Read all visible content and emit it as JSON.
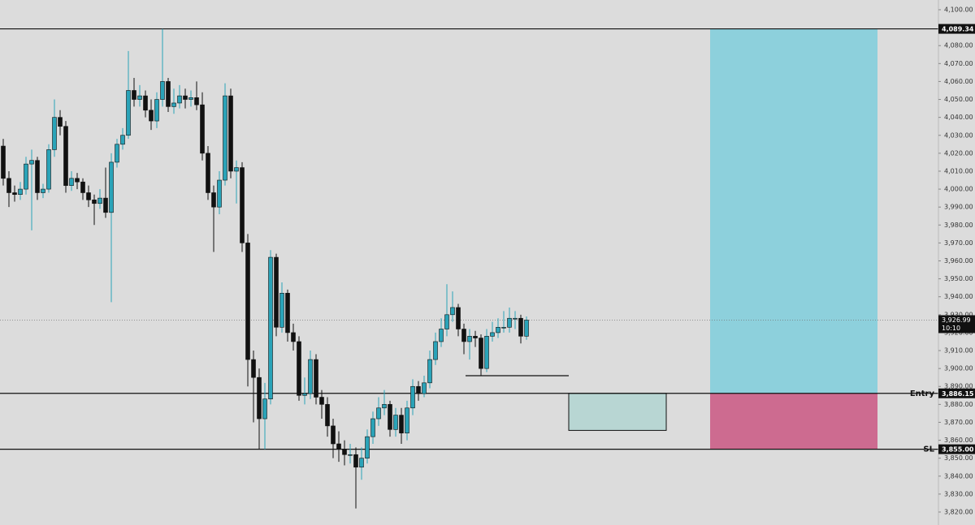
{
  "chart_data": {
    "type": "candlestick",
    "ylim": [
      3812.76,
      4105.43
    ],
    "yticks": [
      {
        "value": 3820,
        "label": "3,820.00"
      },
      {
        "value": 3830,
        "label": "3,830.00"
      },
      {
        "value": 3840,
        "label": "3,840.00"
      },
      {
        "value": 3850,
        "label": "3,850.00"
      },
      {
        "value": 3860,
        "label": "3,860.00"
      },
      {
        "value": 3870,
        "label": "3,870.00"
      },
      {
        "value": 3880,
        "label": "3,880.00"
      },
      {
        "value": 3890,
        "label": "3,890.00"
      },
      {
        "value": 3900,
        "label": "3,900.00"
      },
      {
        "value": 3910,
        "label": "3,910.00"
      },
      {
        "value": 3920,
        "label": "3,920.00"
      },
      {
        "value": 3930,
        "label": "3,930.00"
      },
      {
        "value": 3940,
        "label": "3,940.00"
      },
      {
        "value": 3950,
        "label": "3,950.00"
      },
      {
        "value": 3960,
        "label": "3,960.00"
      },
      {
        "value": 3970,
        "label": "3,970.00"
      },
      {
        "value": 3980,
        "label": "3,980.00"
      },
      {
        "value": 3990,
        "label": "3,990.00"
      },
      {
        "value": 4000,
        "label": "4,000.00"
      },
      {
        "value": 4010,
        "label": "4,010.00"
      },
      {
        "value": 4020,
        "label": "4,020.00"
      },
      {
        "value": 4030,
        "label": "4,030.00"
      },
      {
        "value": 4040,
        "label": "4,040.00"
      },
      {
        "value": 4050,
        "label": "4,050.00"
      },
      {
        "value": 4060,
        "label": "4,060.00"
      },
      {
        "value": 4070,
        "label": "4,070.00"
      },
      {
        "value": 4080,
        "label": "4,080.00"
      },
      {
        "value": 4090,
        "label": "4,090.00"
      },
      {
        "value": 4100,
        "label": "4,100.00"
      }
    ],
    "up_color": "#2aa3b8",
    "down_color": "#111111",
    "open": [
      4024,
      4006,
      3998,
      3997,
      4000,
      4014,
      4016,
      3998,
      4000,
      4022,
      4040,
      4035,
      4002,
      4006,
      4004,
      3998,
      3994,
      3992,
      3995,
      3987,
      4015,
      4025,
      4030,
      4055,
      4050,
      4052,
      4044,
      4038,
      4050,
      4060,
      4046,
      4048,
      4052,
      4050,
      4051,
      4047,
      4020,
      3998,
      3990,
      4005,
      4052,
      4010,
      4012,
      3970,
      3905,
      3895,
      3872,
      3883,
      3962,
      3923,
      3942,
      3920,
      3915,
      3885,
      3886,
      3905,
      3884,
      3880,
      3868,
      3858,
      3855,
      3852,
      3852,
      3845,
      3850,
      3862,
      3872,
      3878,
      3880,
      3866,
      3874,
      3864,
      3878,
      3890,
      3886,
      3892,
      3905,
      3915,
      3922,
      3930,
      3934,
      3922,
      3915,
      3918,
      3917,
      3900,
      3918,
      3920,
      3923,
      3923,
      3928,
      3928,
      3918
    ],
    "high": [
      4028,
      4010,
      4002,
      4004,
      4018,
      4022,
      4018,
      4003,
      4025,
      4050,
      4044,
      4038,
      4010,
      4009,
      4006,
      4002,
      3997,
      4000,
      4012,
      4020,
      4028,
      4034,
      4077,
      4062,
      4058,
      4055,
      4050,
      4054,
      4089.34,
      4062,
      4056,
      4058,
      4056,
      4055,
      4060,
      4054,
      4024,
      4002,
      4010,
      4059,
      4056,
      4016,
      4015,
      3975,
      3910,
      3900,
      3892,
      3966,
      3964,
      3948,
      3944,
      3925,
      3918,
      3895,
      3910,
      3908,
      3888,
      3884,
      3872,
      3865,
      3860,
      3858,
      3856,
      3856,
      3866,
      3876,
      3884,
      3888,
      3882,
      3878,
      3878,
      3882,
      3894,
      3893,
      3896,
      3910,
      3920,
      3928,
      3947,
      3943,
      3936,
      3925,
      3922,
      3921,
      3919,
      3922,
      3926,
      3928,
      3932,
      3934,
      3932,
      3930,
      3929
    ],
    "low": [
      4002,
      3990,
      3993,
      3994,
      3997,
      3977,
      3994,
      3995,
      3998,
      4018,
      4030,
      3998,
      3999,
      4000,
      3994,
      3990,
      3980,
      3989,
      3984,
      3937,
      4012,
      4022,
      4028,
      4046,
      4046,
      4040,
      4033,
      4034,
      4046,
      4043,
      4042,
      4045,
      4045,
      4046,
      4044,
      4016,
      3994,
      3965,
      3986,
      4002,
      4006,
      3992,
      3965,
      3890,
      3870,
      3855,
      3855,
      3880,
      3918,
      3920,
      3915,
      3910,
      3882,
      3880,
      3883,
      3880,
      3872,
      3862,
      3850,
      3848,
      3846,
      3847,
      3822,
      3838,
      3847,
      3858,
      3868,
      3874,
      3862,
      3862,
      3858,
      3860,
      3874,
      3882,
      3884,
      3889,
      3902,
      3912,
      3918,
      3926,
      3918,
      3908,
      3905,
      3912,
      3896,
      3898,
      3915,
      3917,
      3920,
      3920,
      3922,
      3914,
      3916
    ],
    "close": [
      4006,
      3998,
      3997,
      4000,
      4014,
      4016,
      3998,
      4000,
      4022,
      4040,
      4035,
      4002,
      4006,
      4004,
      3998,
      3994,
      3992,
      3995,
      3987,
      4015,
      4025,
      4030,
      4055,
      4050,
      4052,
      4044,
      4038,
      4050,
      4060,
      4046,
      4048,
      4052,
      4050,
      4051,
      4047,
      4020,
      3998,
      3990,
      4005,
      4052,
      4010,
      4012,
      3970,
      3905,
      3895,
      3872,
      3883,
      3962,
      3923,
      3942,
      3920,
      3915,
      3885,
      3886,
      3905,
      3884,
      3880,
      3868,
      3858,
      3855,
      3852,
      3852,
      3845,
      3850,
      3862,
      3872,
      3878,
      3880,
      3866,
      3874,
      3864,
      3878,
      3890,
      3886,
      3892,
      3905,
      3915,
      3922,
      3930,
      3934,
      3922,
      3915,
      3918,
      3917,
      3900,
      3918,
      3920,
      3923,
      3923,
      3928,
      3928,
      3918,
      3926.99
    ],
    "levels": [
      {
        "value": 4089.34,
        "label": "4,089.34"
      },
      {
        "value": 3886.15,
        "label": "3,886.15",
        "name": "Entry"
      },
      {
        "value": 3855,
        "label": "3,855.00",
        "name": "SL"
      }
    ],
    "last_price": {
      "value": 3926.99,
      "label": "3,926.99",
      "countdown": "10:10"
    },
    "target_color": "#8dd0dc",
    "stop_color": "#cd6b90",
    "zone": [
      3886.15,
      3865.5
    ],
    "zone_color": "#b8d6d3",
    "marker_line": 3896
  }
}
